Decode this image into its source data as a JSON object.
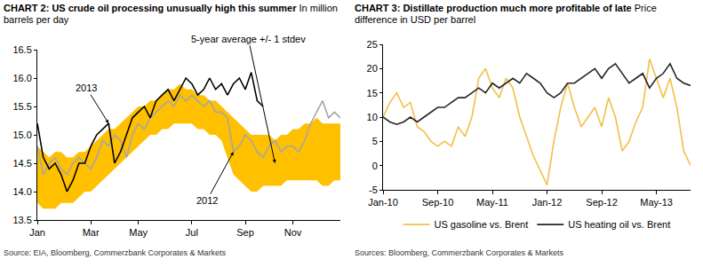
{
  "chart_data": [
    {
      "type": "line",
      "title": "CHART 2: US crude oil processing unusually high this summer",
      "subtitle": "In million barrels per day",
      "source": "Source: EIA, Bloomberg, Commerzbank Corporates & Markets",
      "categories": [
        "Jan",
        null,
        null,
        null,
        null,
        null,
        null,
        null,
        null,
        "Mar",
        null,
        null,
        null,
        null,
        null,
        null,
        null,
        "May",
        null,
        null,
        null,
        null,
        null,
        null,
        null,
        null,
        "Jul",
        null,
        null,
        null,
        null,
        null,
        null,
        null,
        null,
        "Sep",
        null,
        null,
        null,
        null,
        null,
        null,
        null,
        "Nov",
        null,
        null,
        null,
        null,
        null,
        null,
        null,
        null
      ],
      "ylim": [
        13.5,
        16.5
      ],
      "yticks": [
        13.5,
        {
          "value": 14,
          "label": "14.0"
        },
        14.5,
        {
          "value": 15,
          "label": "15.0"
        },
        15.5,
        {
          "value": 16,
          "label": "16.0"
        },
        16.5
      ],
      "grid": false,
      "series": [
        {
          "name": "5-year average +/- 1 stdev",
          "type": "band",
          "color": "#ffc000",
          "low": [
            13.8,
            13.7,
            13.7,
            13.7,
            13.8,
            13.8,
            13.8,
            13.9,
            14.0,
            14.0,
            14.1,
            14.2,
            14.3,
            14.4,
            14.5,
            14.6,
            14.7,
            14.8,
            14.9,
            15.0,
            15.0,
            15.1,
            15.1,
            15.2,
            15.2,
            15.2,
            15.2,
            15.1,
            15.1,
            15.0,
            15.0,
            14.9,
            14.6,
            14.3,
            14.2,
            14.1,
            14.0,
            14.0,
            14.1,
            14.1,
            14.1,
            14.1,
            14.2,
            14.2,
            14.2,
            14.2,
            14.2,
            14.2,
            14.1,
            14.1,
            14.2,
            14.2
          ],
          "high": [
            14.8,
            14.7,
            14.6,
            14.7,
            14.7,
            14.6,
            14.6,
            14.7,
            14.7,
            14.8,
            14.9,
            15.0,
            15.1,
            15.1,
            15.2,
            15.3,
            15.4,
            15.5,
            15.5,
            15.6,
            15.6,
            15.7,
            15.8,
            15.8,
            15.9,
            15.8,
            15.8,
            15.7,
            15.7,
            15.6,
            15.6,
            15.5,
            15.4,
            15.3,
            15.2,
            15.1,
            15.0,
            15.0,
            15.0,
            15.0,
            14.9,
            15.0,
            15.0,
            15.1,
            15.1,
            15.2,
            15.2,
            15.3,
            15.2,
            15.2,
            15.2,
            15.2
          ]
        },
        {
          "name": "2012",
          "type": "line",
          "color": "#a6a6a6",
          "values": [
            14.8,
            14.3,
            14.5,
            14.6,
            14.4,
            14.3,
            14.5,
            14.6,
            14.5,
            14.4,
            14.6,
            14.9,
            14.8,
            15.0,
            14.9,
            14.6,
            15.0,
            15.2,
            15.1,
            15.3,
            15.4,
            15.5,
            15.6,
            15.5,
            15.7,
            15.6,
            15.7,
            15.6,
            15.5,
            15.6,
            15.4,
            15.4,
            15.3,
            14.7,
            14.8,
            15.0,
            14.9,
            14.7,
            14.6,
            14.8,
            14.9,
            14.7,
            14.8,
            14.8,
            14.7,
            14.9,
            15.2,
            15.4,
            15.6,
            15.3,
            15.4,
            15.3
          ]
        },
        {
          "name": "2013",
          "type": "line",
          "color": "#000000",
          "values": [
            15.2,
            14.6,
            14.4,
            14.5,
            14.3,
            14.0,
            14.2,
            14.5,
            14.5,
            14.8,
            15.0,
            15.1,
            15.2,
            14.5,
            14.7,
            15.0,
            15.3,
            15.4,
            15.5,
            15.3,
            15.6,
            15.7,
            15.8,
            15.6,
            15.8,
            16.0,
            15.9,
            15.7,
            15.8,
            16.0,
            15.8,
            15.9,
            15.7,
            15.9,
            16.0,
            15.8,
            16.1,
            15.6,
            15.5,
            null,
            null,
            null,
            null,
            null,
            null,
            null,
            null,
            null,
            null,
            null,
            null,
            null
          ]
        }
      ]
    },
    {
      "type": "line",
      "title": "CHART 3: Distillate production much more profitable of late",
      "subtitle": "Price difference in USD per barrel",
      "source": "Sources: Bloomberg, Commerzbank Corporates & Markets",
      "categories": [
        "Jan-10",
        null,
        null,
        null,
        null,
        null,
        null,
        null,
        "Sep-10",
        null,
        null,
        null,
        null,
        null,
        null,
        null,
        "May-11",
        null,
        null,
        null,
        null,
        null,
        null,
        null,
        "Jan-12",
        null,
        null,
        null,
        null,
        null,
        null,
        null,
        "Sep-12",
        null,
        null,
        null,
        null,
        null,
        null,
        null,
        "May-13",
        null,
        null,
        null,
        null,
        null
      ],
      "ylim": [
        -5,
        25
      ],
      "yticks": [
        -5,
        0,
        5,
        10,
        15,
        20,
        25
      ],
      "grid": false,
      "legend": "bottom",
      "series": [
        {
          "name": "US gasoline vs. Brent",
          "color": "#f2bf4a",
          "values": [
            10,
            13,
            15,
            12,
            13,
            8,
            7,
            5,
            4,
            5,
            4,
            8,
            6,
            10,
            18,
            20,
            16,
            14,
            18,
            16,
            10,
            6,
            2,
            -1,
            -4,
            5,
            12,
            17,
            12,
            8,
            10,
            12,
            8,
            14,
            10,
            3,
            5,
            9,
            12,
            22,
            18,
            14,
            18,
            12,
            3,
            0
          ]
        },
        {
          "name": "US heating oil vs. Brent",
          "color": "#262626",
          "values": [
            10,
            9,
            8.5,
            9,
            10,
            9,
            10,
            11,
            12,
            12,
            13,
            14,
            14,
            15,
            16,
            15,
            17,
            16,
            17,
            18,
            17,
            19,
            18,
            17,
            15,
            14,
            15,
            17,
            17,
            18,
            19,
            20,
            18,
            20,
            21,
            19,
            17,
            18,
            19,
            16,
            18,
            19,
            21,
            18,
            17,
            16.5
          ]
        }
      ]
    }
  ]
}
